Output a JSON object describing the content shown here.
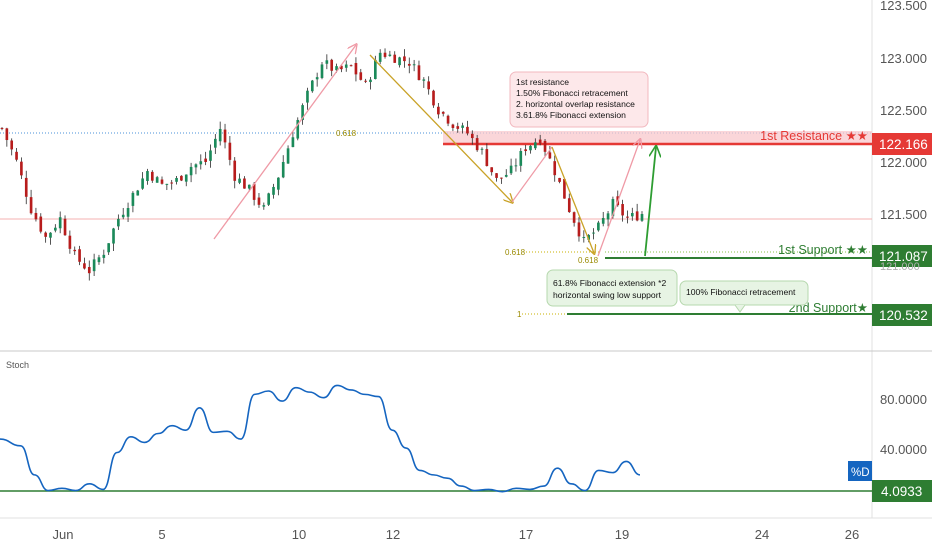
{
  "colors": {
    "up": "#26a69a",
    "down": "#ef5350",
    "resistance": "#e53935",
    "support": "#2e7d32",
    "stoch": "#1565c0",
    "fib": "#b8a000",
    "arrow_pink": "#ef9aa6",
    "arrow_gold": "#c9a227",
    "axis_text": "#555555"
  },
  "price_axis": {
    "ticks": [
      "123.500",
      "123.000",
      "122.500",
      "122.000",
      "121.500"
    ],
    "resistance_badge": "122.166",
    "support1_badge": "121.087",
    "support2_badge": "120.532"
  },
  "stoch_axis": {
    "ticks": [
      "80.0000",
      "40.0000"
    ],
    "value_badge": "4.0933",
    "series_badge": "%D"
  },
  "time_axis": {
    "labels": [
      "Jun",
      "5",
      "10",
      "12",
      "17",
      "19",
      "24",
      "26"
    ]
  },
  "indicator_label": "Stoch",
  "levels": {
    "resistance_label": "1st Resistance ★★",
    "support1_label": "1st Support ★★",
    "support2_label": "2nd Support★"
  },
  "fib_labels": {
    "a": "0.618",
    "b": "0.618",
    "c": "0.618",
    "d": "1"
  },
  "annotations": {
    "resistance_box": [
      "1st resistance",
      "1.50% Fibonacci retracement",
      "2. horizontal overlap resistance",
      "3.61.8% Fibonacci extension"
    ],
    "support_box": [
      "61.8% Fibonacci extension *2",
      "horizontal swing low support"
    ],
    "support2_box": [
      "100% Fibonacci retracement"
    ]
  },
  "chart_data": {
    "type": "line",
    "title": "",
    "price_range": [
      120.25,
      123.55
    ],
    "stoch_range": [
      0,
      110
    ],
    "levels": {
      "resistance": 122.166,
      "support_1": 121.087,
      "support_2": 120.532,
      "fib_0618_upper": 122.26,
      "horizontal_mid": 121.44
    },
    "price_path": [
      [
        0,
        122.25
      ],
      [
        3,
        121.9
      ],
      [
        6,
        121.4
      ],
      [
        9,
        121.1
      ],
      [
        12,
        121.3
      ],
      [
        15,
        120.9
      ],
      [
        18,
        120.75
      ],
      [
        21,
        120.95
      ],
      [
        24,
        121.3
      ],
      [
        27,
        121.55
      ],
      [
        30,
        121.8
      ],
      [
        33,
        121.65
      ],
      [
        36,
        121.7
      ],
      [
        39,
        121.85
      ],
      [
        42,
        121.9
      ],
      [
        45,
        122.25
      ],
      [
        48,
        121.75
      ],
      [
        51,
        121.6
      ],
      [
        54,
        121.4
      ],
      [
        57,
        121.75
      ],
      [
        60,
        122.2
      ],
      [
        63,
        122.6
      ],
      [
        66,
        122.95
      ],
      [
        69,
        122.85
      ],
      [
        72,
        122.9
      ],
      [
        75,
        122.7
      ],
      [
        78,
        123.05
      ],
      [
        81,
        123.0
      ],
      [
        84,
        122.95
      ],
      [
        87,
        122.75
      ],
      [
        90,
        122.45
      ],
      [
        93,
        122.3
      ],
      [
        96,
        122.2
      ],
      [
        99,
        122.0
      ],
      [
        102,
        121.7
      ],
      [
        105,
        121.8
      ],
      [
        108,
        122.05
      ],
      [
        111,
        122.15
      ],
      [
        114,
        121.8
      ],
      [
        117,
        121.4
      ],
      [
        120,
        121.05
      ],
      [
        123,
        121.2
      ],
      [
        126,
        121.45
      ],
      [
        129,
        121.3
      ],
      [
        132,
        121.35
      ]
    ],
    "stoch_d": [
      [
        0,
        50
      ],
      [
        3,
        44
      ],
      [
        5,
        18
      ],
      [
        7,
        4
      ],
      [
        9,
        6
      ],
      [
        11,
        4
      ],
      [
        13,
        10
      ],
      [
        15,
        5
      ],
      [
        17,
        38
      ],
      [
        19,
        52
      ],
      [
        21,
        47
      ],
      [
        23,
        55
      ],
      [
        25,
        62
      ],
      [
        27,
        58
      ],
      [
        29,
        78
      ],
      [
        31,
        56
      ],
      [
        33,
        57
      ],
      [
        35,
        50
      ],
      [
        37,
        90
      ],
      [
        39,
        93
      ],
      [
        41,
        84
      ],
      [
        43,
        96
      ],
      [
        45,
        92
      ],
      [
        47,
        87
      ],
      [
        49,
        98
      ],
      [
        51,
        94
      ],
      [
        53,
        90
      ],
      [
        55,
        88
      ],
      [
        57,
        58
      ],
      [
        59,
        42
      ],
      [
        61,
        22
      ],
      [
        63,
        18
      ],
      [
        65,
        15
      ],
      [
        67,
        8
      ],
      [
        69,
        4
      ],
      [
        71,
        5
      ],
      [
        73,
        3
      ],
      [
        75,
        6
      ],
      [
        77,
        5
      ],
      [
        79,
        8
      ],
      [
        81,
        24
      ],
      [
        83,
        10
      ],
      [
        85,
        4
      ],
      [
        87,
        22
      ],
      [
        89,
        20
      ],
      [
        91,
        30
      ],
      [
        93,
        18
      ]
    ]
  }
}
